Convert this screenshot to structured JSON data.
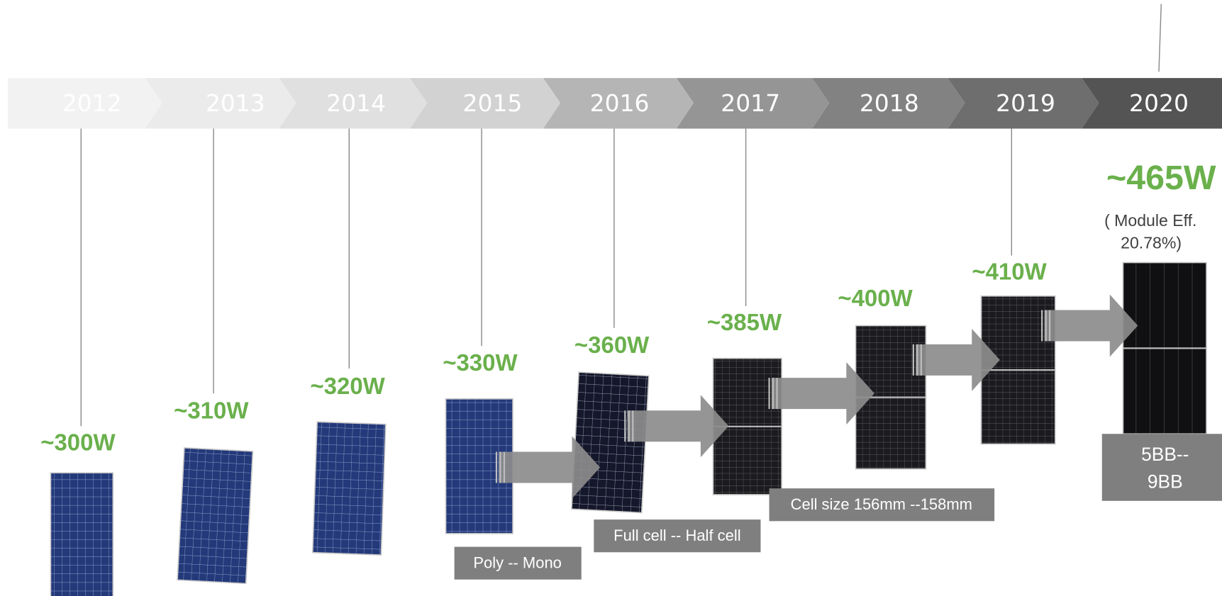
{
  "milestones": [
    {
      "year": "2012",
      "power": "~300W"
    },
    {
      "year": "2013",
      "power": "~310W"
    },
    {
      "year": "2014",
      "power": "~320W"
    },
    {
      "year": "2015",
      "power": "~330W"
    },
    {
      "year": "2016",
      "power": "~360W"
    },
    {
      "year": "2017",
      "power": "~385W"
    },
    {
      "year": "2018",
      "power": "~400W"
    },
    {
      "year": "2019",
      "power": "~410W"
    },
    {
      "year": "2020",
      "power": "~465W"
    }
  ],
  "note": [
    "(  Module Eff.",
    "20.78%)"
  ],
  "annotations": [
    "Poly -- Mono",
    "Full cell -- Half cell",
    "Cell size 156mm --158mm",
    [
      "5BB--",
      "9BB"
    ]
  ]
}
